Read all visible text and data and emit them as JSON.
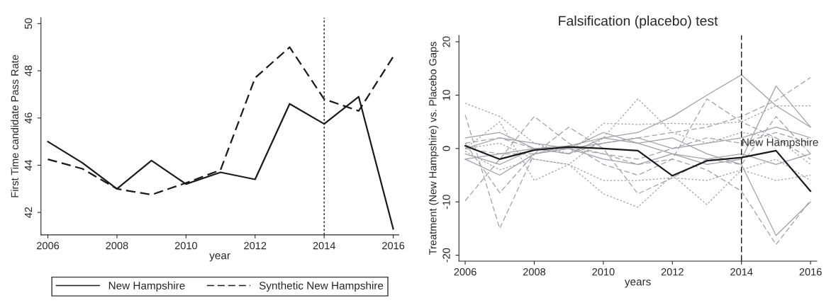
{
  "chart_data": [
    {
      "type": "line",
      "xlabel": "year",
      "ylabel": "First Time candidate Pass Rate",
      "x": [
        2006,
        2007,
        2008,
        2009,
        2010,
        2011,
        2012,
        2013,
        2014,
        2015,
        2016
      ],
      "series": [
        {
          "name": "New Hampshire",
          "color": "#1a1a1a",
          "line_style": "solid",
          "values": [
            45.0,
            44.1,
            43.0,
            44.2,
            43.2,
            43.7,
            43.4,
            46.6,
            45.75,
            46.9,
            41.3
          ]
        },
        {
          "name": "Synthetic New Hampshire",
          "color": "#1a1a1a",
          "line_style": "dashed",
          "values": [
            44.25,
            43.85,
            43.0,
            42.75,
            43.25,
            43.8,
            47.7,
            49.0,
            46.8,
            46.3,
            48.6
          ]
        }
      ],
      "xlim": [
        2005.8,
        2016.16
      ],
      "ylim": [
        41.05,
        50.25
      ],
      "xticks": [
        2006,
        2008,
        2010,
        2012,
        2014,
        2016
      ],
      "yticks": [
        42,
        44,
        46,
        48,
        50
      ],
      "ref_lines": [
        {
          "axis": "x",
          "value": 2014,
          "color": "#1a1a1a",
          "line_style": "dotted"
        }
      ],
      "legend": "bottom",
      "grid": false
    },
    {
      "type": "line",
      "title": "Falsification (placebo) test",
      "xlabel": "years",
      "ylabel": "Treatment (New Hampshire) vs. Placebo Gaps",
      "x": [
        2006,
        2007,
        2008,
        2009,
        2010,
        2011,
        2012,
        2013,
        2014,
        2015,
        2016
      ],
      "series": [
        {
          "color": "#a0a0a8",
          "line_style": "dashed",
          "values": [
            6.3,
            -15,
            -1,
            0.5,
            -1,
            -2,
            0,
            2,
            1,
            3,
            1
          ]
        },
        {
          "color": "#a0a0a8",
          "line_style": "dashed",
          "values": [
            -9.8,
            -2,
            6,
            1,
            -3,
            -5,
            -2,
            9.3,
            5,
            2,
            -2
          ]
        },
        {
          "color": "#a0a0a8",
          "line_style": "solid",
          "values": [
            2,
            3,
            0,
            -1,
            2,
            3,
            6,
            10,
            13.8,
            8,
            4
          ]
        },
        {
          "color": "#a0a0a8",
          "line_style": "dashed",
          "values": [
            0,
            -1,
            -1,
            0,
            -1,
            -3,
            -2,
            -4,
            -8,
            -18,
            -9.7
          ]
        },
        {
          "color": "#a0a0a8",
          "line_style": "solid",
          "values": [
            -1,
            -3,
            0,
            0.5,
            2,
            1,
            2,
            -1,
            -3,
            -16.3,
            -10
          ]
        },
        {
          "color": "#a0a0a8",
          "line_style": "dashed",
          "values": [
            1,
            2,
            0,
            -1,
            1,
            2,
            3,
            4,
            6,
            9,
            13.3
          ]
        },
        {
          "color": "#a0a0a8",
          "line_style": "solid",
          "values": [
            -2,
            -5,
            -1,
            0,
            3,
            1,
            -1,
            -3,
            -2,
            11.7,
            4
          ]
        },
        {
          "color": "#a0a0a8",
          "line_style": "dotted",
          "values": [
            0,
            1,
            -2,
            -3,
            2,
            9.3,
            3,
            1,
            3,
            2,
            -3
          ]
        },
        {
          "color": "#a0a0a8",
          "line_style": "dotted",
          "values": [
            -0.5,
            -4,
            -2,
            -3,
            -8.5,
            -11,
            -5,
            -10.5,
            -4,
            -6,
            -5
          ]
        },
        {
          "color": "#a0a0a8",
          "line_style": "dotted",
          "values": [
            8.5,
            6,
            1,
            -1,
            4.7,
            4.5,
            4.7,
            4.5,
            5,
            8,
            8
          ]
        },
        {
          "color": "#a0a0a8",
          "line_style": "dashed",
          "values": [
            1,
            -8.3,
            -1,
            4,
            0,
            -8.5,
            -5.5,
            -2,
            -3,
            6,
            -1
          ]
        },
        {
          "color": "#a0a0a8",
          "line_style": "dotted",
          "values": [
            0,
            5,
            -6,
            -3,
            -6,
            -6,
            -5.5,
            -6,
            -4,
            -2,
            -6
          ]
        },
        {
          "color": "#a0a0a8",
          "line_style": "solid",
          "values": [
            0,
            2,
            1,
            0,
            1,
            2,
            0,
            1,
            2,
            4,
            2
          ]
        },
        {
          "color": "#a0a0a8",
          "line_style": "solid",
          "values": [
            -2,
            -1,
            0,
            0,
            -2,
            -3,
            -1,
            -2,
            -1,
            -3,
            -1
          ]
        },
        {
          "color": "#1a1a1a",
          "line_style": "solid",
          "values": [
            0.5,
            -2.0,
            -0.3,
            0.3,
            0,
            -0.4,
            -5.1,
            -2.3,
            -1.7,
            -0.4,
            -8
          ]
        }
      ],
      "annotations": [
        {
          "text": "New Hampshire",
          "x": 2014,
          "y": 1
        }
      ],
      "xlim": [
        2005.82,
        2016.18
      ],
      "ylim": [
        -21.1,
        21.2
      ],
      "xticks": [
        2006,
        2008,
        2010,
        2012,
        2014,
        2016
      ],
      "yticks": [
        -20,
        -10,
        0,
        10,
        20
      ],
      "ref_lines": [
        {
          "axis": "x",
          "value": 2014,
          "color": "#1a1a1a",
          "line_style": "dashed"
        }
      ],
      "legend": false,
      "grid": false
    }
  ]
}
